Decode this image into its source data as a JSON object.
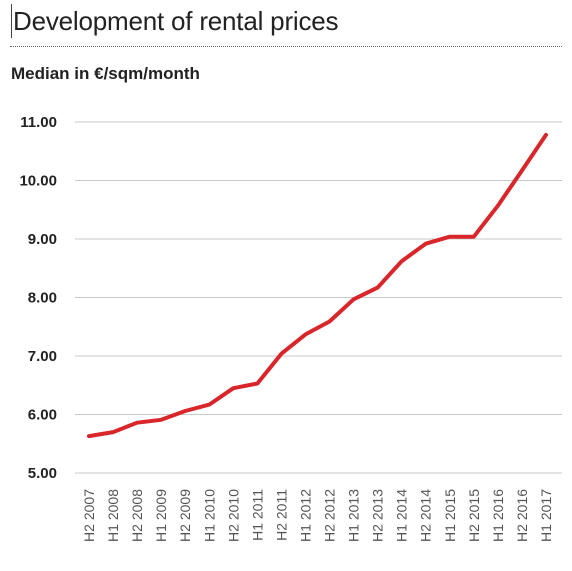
{
  "chart_data": {
    "type": "line",
    "title": "Development of rental prices",
    "ylabel": "Median in €/sqm/month",
    "xlabel": "",
    "ylim": [
      5.0,
      11.0
    ],
    "yticks": [
      "5.00",
      "6.00",
      "7.00",
      "8.00",
      "9.00",
      "10.00",
      "11.00"
    ],
    "grid": true,
    "line_color": "#d8262b",
    "categories": [
      "H2 2007",
      "H1 2008",
      "H2 2008",
      "H1 2009",
      "H2 2009",
      "H1 2010",
      "H2 2010",
      "H1 2011",
      "H2 2011",
      "H1 2012",
      "H2 2012",
      "H1 2013",
      "H2 2013",
      "H1 2014",
      "H2 2014",
      "H1 2015",
      "H2 2015",
      "H1 2016",
      "H2 2016",
      "H1 2017"
    ],
    "series": [
      {
        "values": [
          5.63,
          5.7,
          5.86,
          5.91,
          6.06,
          6.17,
          6.45,
          6.53,
          7.04,
          7.37,
          7.59,
          7.97,
          8.17,
          8.62,
          8.92,
          9.04,
          9.04,
          9.57,
          10.17,
          10.78
        ]
      }
    ]
  }
}
